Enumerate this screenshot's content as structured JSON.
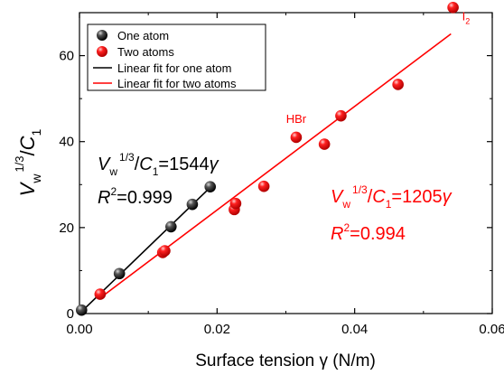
{
  "chart_data": {
    "type": "scatter",
    "xlabel": "Surface tension γ (N/m)",
    "ylabel": "V_w^1/3/C_1",
    "xlim": [
      0,
      0.06
    ],
    "ylim": [
      0,
      70
    ],
    "x_ticks": [
      {
        "value": 0.0,
        "label": "0.00"
      },
      {
        "value": 0.02,
        "label": "0.02"
      },
      {
        "value": 0.04,
        "label": "0.04"
      },
      {
        "value": 0.06,
        "label": "0.06"
      }
    ],
    "y_ticks": [
      {
        "value": 0,
        "label": "0"
      },
      {
        "value": 20,
        "label": "20"
      },
      {
        "value": 40,
        "label": "40"
      },
      {
        "value": 60,
        "label": "60"
      }
    ],
    "legend": {
      "placement": "top-left",
      "entries": [
        "One atom",
        "Two atoms",
        "Linear fit for one atom",
        "Linear fit for two atoms"
      ]
    },
    "series": [
      {
        "name": "One atom",
        "color": "#000000",
        "points": [
          {
            "x": 0.0003,
            "y": 0.8
          },
          {
            "x": 0.0058,
            "y": 9.3
          },
          {
            "x": 0.0133,
            "y": 20.2
          },
          {
            "x": 0.0164,
            "y": 25.4
          },
          {
            "x": 0.019,
            "y": 29.5
          }
        ]
      },
      {
        "name": "Two atoms",
        "color": "#ff0000",
        "points": [
          {
            "x": 0.003,
            "y": 4.5
          },
          {
            "x": 0.0121,
            "y": 14.2
          },
          {
            "x": 0.0124,
            "y": 14.6
          },
          {
            "x": 0.0225,
            "y": 24.2
          },
          {
            "x": 0.0227,
            "y": 25.6
          },
          {
            "x": 0.0268,
            "y": 29.6
          },
          {
            "x": 0.0315,
            "y": 41.0
          },
          {
            "x": 0.0356,
            "y": 39.4
          },
          {
            "x": 0.038,
            "y": 46.0
          },
          {
            "x": 0.0463,
            "y": 53.3
          },
          {
            "x": 0.0543,
            "y": 71.2
          }
        ]
      }
    ],
    "fits": [
      {
        "name": "Linear fit for one atom",
        "color": "#000000",
        "slope": 1544,
        "x_range": [
          0,
          0.019
        ]
      },
      {
        "name": "Linear fit for two atoms",
        "color": "#ff0000",
        "slope": 1205,
        "x_range": [
          0.003,
          0.054
        ]
      }
    ],
    "annotations": {
      "point_labels": [
        {
          "text": "HBr",
          "series": 1,
          "point": 6
        },
        {
          "text": "I",
          "sub": "2",
          "series": 1,
          "point": 10
        }
      ],
      "black_equation": {
        "v": "V",
        "w": "w",
        "exp": "1/3",
        "slash": "/",
        "c": "C",
        "one": "1",
        "rhs": "=1544",
        "gamma": "γ",
        "r": "R",
        "r2sup": "2",
        "r2val": "=0.999",
        "color": "#000000"
      },
      "red_equation": {
        "v": "V",
        "w": "w",
        "exp": "1/3",
        "slash": "/",
        "c": "C",
        "one": "1",
        "rhs": "=1205",
        "gamma": "γ",
        "r": "R",
        "r2sup": "2",
        "r2val": "=0.994",
        "color": "#ff0000"
      }
    }
  }
}
